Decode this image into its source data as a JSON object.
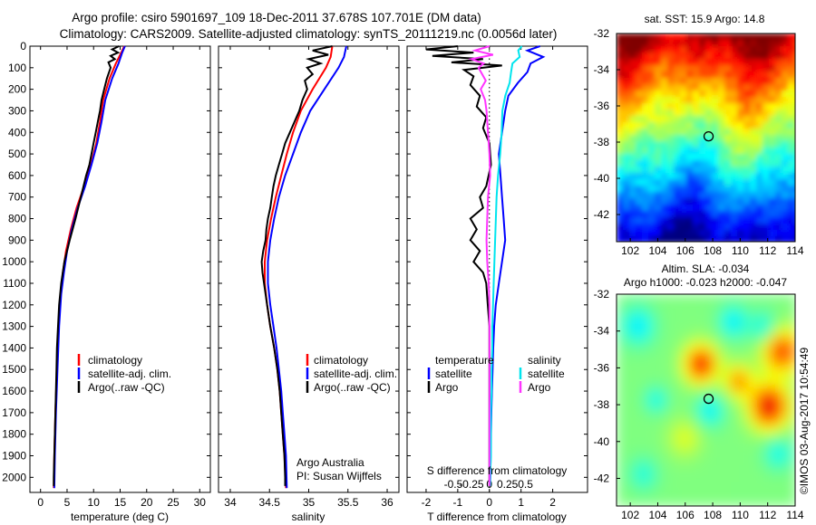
{
  "header": {
    "line1": "Argo profile: csiro 5901697_109 18-Dec-2011 37.678S 107.701E (DM data)",
    "line2": "Climatology: CARS2009. Satellite-adjusted climatology: synTS_20111219.nc (0.0056d later)"
  },
  "side_labels": {
    "sst": "sat. SST: 15.9 Argo: 14.8",
    "sla1": "Altim. SLA: -0.034",
    "sla2": "Argo h1000: -0.023 h2000: -0.047",
    "credit": "©IMOS 03-Aug-2017 10:54:49"
  },
  "colors": {
    "climatology": "#ff0000",
    "satellite": "#0000ff",
    "argo": "#000000",
    "salinity_satellite": "#00e5ee",
    "salinity_argo": "#ff33ff"
  },
  "chart_data": [
    {
      "id": "temperature",
      "type": "line",
      "xlabel": "temperature (deg C)",
      "ylabel": "",
      "xlim": [
        -2,
        32
      ],
      "ylim": [
        2070,
        0
      ],
      "xticks": [
        0,
        5,
        10,
        15,
        20,
        25,
        30
      ],
      "yticks": [
        0,
        100,
        200,
        300,
        400,
        500,
        600,
        700,
        800,
        900,
        1000,
        1100,
        1200,
        1300,
        1400,
        1500,
        1600,
        1700,
        1800,
        1900,
        2000
      ],
      "legend": [
        "climatology",
        "satellite-adj. clim.",
        "Argo(..raw -QC)"
      ],
      "legend_position": "bottom-center",
      "series": [
        {
          "name": "climatology",
          "color": "#ff0000",
          "depth": [
            0,
            30,
            80,
            150,
            250,
            350,
            450,
            550,
            650,
            750,
            850,
            950,
            1050,
            1150,
            1300,
            1500,
            1700,
            1900,
            2050
          ],
          "values": [
            15.8,
            15.2,
            14.2,
            13.0,
            11.8,
            11.2,
            10.5,
            9.5,
            8.2,
            6.8,
            5.7,
            4.8,
            4.2,
            3.8,
            3.4,
            3.1,
            2.8,
            2.6,
            2.5
          ]
        },
        {
          "name": "satellite-adj. clim.",
          "color": "#0000ff",
          "depth": [
            0,
            30,
            80,
            150,
            250,
            350,
            450,
            550,
            650,
            750,
            850,
            950,
            1050,
            1150,
            1300,
            1500,
            1700,
            1900,
            2050
          ],
          "values": [
            15.9,
            15.4,
            14.7,
            13.5,
            12.2,
            11.5,
            10.7,
            9.6,
            8.4,
            7.0,
            5.9,
            5.0,
            4.4,
            3.9,
            3.5,
            3.2,
            2.9,
            2.7,
            2.6
          ]
        },
        {
          "name": "Argo(..raw -QC)",
          "color": "#000000",
          "depth": [
            0,
            15,
            30,
            45,
            60,
            75,
            100,
            150,
            200,
            250,
            300,
            350,
            400,
            450,
            500,
            550,
            600,
            700,
            800,
            900,
            1000,
            1100,
            1200,
            1300,
            1400,
            1500,
            1600,
            1700,
            1800,
            1900,
            2000,
            2040
          ],
          "values": [
            14.8,
            13.5,
            14.6,
            13.2,
            14.0,
            12.8,
            13.2,
            12.5,
            12.0,
            11.5,
            11.2,
            10.8,
            10.4,
            10.0,
            9.6,
            9.2,
            8.6,
            7.6,
            6.6,
            5.5,
            4.5,
            3.9,
            3.5,
            3.3,
            3.1,
            3.0,
            2.9,
            2.8,
            2.7,
            2.6,
            2.5,
            2.5
          ]
        }
      ]
    },
    {
      "id": "salinity",
      "type": "line",
      "xlabel": "salinity",
      "ylabel": "",
      "xlim": [
        33.85,
        36.15
      ],
      "ylim": [
        2070,
        0
      ],
      "xticks": [
        34,
        34.5,
        35,
        35.5,
        36
      ],
      "legend": [
        "climatology",
        "satellite-adj. clim.",
        "Argo(..raw -QC)"
      ],
      "legend_position": "bottom-center",
      "annotation": [
        "Argo Australia",
        "PI: Susan Wijffels"
      ],
      "series": [
        {
          "name": "climatology",
          "color": "#ff0000",
          "depth": [
            0,
            50,
            100,
            200,
            300,
            400,
            500,
            600,
            700,
            800,
            900,
            1000,
            1100,
            1200,
            1300,
            1400,
            1500,
            1600,
            1700,
            1800,
            1900,
            2050
          ],
          "values": [
            35.3,
            35.28,
            35.22,
            35.05,
            34.9,
            34.8,
            34.72,
            34.65,
            34.58,
            34.52,
            34.47,
            34.44,
            34.44,
            34.47,
            34.51,
            34.56,
            34.6,
            34.63,
            34.65,
            34.67,
            34.69,
            34.71
          ]
        },
        {
          "name": "satellite-adj. clim.",
          "color": "#0000ff",
          "depth": [
            0,
            50,
            100,
            200,
            300,
            400,
            500,
            600,
            700,
            800,
            900,
            1000,
            1100,
            1200,
            1300,
            1400,
            1500,
            1600,
            1700,
            1800,
            1900,
            2050
          ],
          "values": [
            35.48,
            35.45,
            35.38,
            35.2,
            35.02,
            34.9,
            34.8,
            34.7,
            34.62,
            34.56,
            34.51,
            34.48,
            34.48,
            34.51,
            34.55,
            34.59,
            34.62,
            34.65,
            34.67,
            34.69,
            34.71,
            34.72
          ]
        },
        {
          "name": "Argo(..raw -QC)",
          "color": "#000000",
          "depth": [
            0,
            20,
            40,
            60,
            80,
            100,
            130,
            160,
            200,
            250,
            300,
            350,
            400,
            450,
            500,
            550,
            600,
            650,
            700,
            750,
            800,
            850,
            900,
            950,
            1000,
            1050,
            1100,
            1200,
            1300,
            1400,
            1500,
            1600,
            1700,
            1800,
            1900,
            2000,
            2040
          ],
          "values": [
            35.3,
            35.05,
            35.25,
            35.0,
            35.15,
            34.98,
            35.05,
            34.95,
            34.98,
            34.92,
            34.88,
            34.82,
            34.76,
            34.7,
            34.66,
            34.62,
            34.58,
            34.55,
            34.53,
            34.51,
            34.48,
            34.46,
            34.45,
            34.42,
            34.4,
            34.41,
            34.43,
            34.47,
            34.51,
            34.56,
            34.6,
            34.63,
            34.65,
            34.67,
            34.69,
            34.7,
            34.7
          ]
        }
      ]
    },
    {
      "id": "difference",
      "type": "line",
      "xlabel": "T difference from climatology",
      "xlabel_top": "S difference from climatology",
      "ylabel": "",
      "xlim": [
        -2.6,
        3.1
      ],
      "ylim": [
        2070,
        0
      ],
      "xticks": [
        -2,
        -1,
        0,
        1,
        2
      ],
      "xticks_s": [
        -0.5,
        -0.25,
        0,
        0.25,
        0.5
      ],
      "legend_left_title": "temperature",
      "legend_right_title": "salinity",
      "legend": [
        "satellite",
        "Argo",
        "satellite",
        "Argo"
      ],
      "legend_position": "bottom-center",
      "series": [
        {
          "name": "satellite",
          "quantity": "temperature",
          "color": "#0000ff",
          "depth": [
            0,
            20,
            50,
            80,
            120,
            170,
            230,
            300,
            400,
            500,
            600,
            700,
            800,
            900,
            1000,
            1100,
            1200,
            1300,
            1400,
            1500,
            1600,
            1700,
            1800,
            1900,
            2000,
            2040
          ],
          "values": [
            1.6,
            1.2,
            1.7,
            1.3,
            1.2,
            0.9,
            0.6,
            0.5,
            0.4,
            0.3,
            0.35,
            0.4,
            0.45,
            0.5,
            0.4,
            0.3,
            0.2,
            0.15,
            0.12,
            0.1,
            0.08,
            0.06,
            0.05,
            0.04,
            0.03,
            0.02
          ]
        },
        {
          "name": "Argo",
          "quantity": "temperature",
          "color": "#000000",
          "depth": [
            0,
            15,
            30,
            45,
            60,
            75,
            90,
            110,
            140,
            180,
            230,
            280,
            330,
            380,
            450,
            550,
            650,
            700,
            750,
            800,
            850,
            900,
            950,
            1000,
            1050,
            1100,
            1200,
            1300,
            1400,
            1500,
            1600,
            1700,
            1800,
            1900,
            2000,
            2040
          ],
          "values": [
            -1.0,
            -2.0,
            -0.5,
            -1.8,
            -0.2,
            -1.2,
            0.4,
            -0.8,
            -0.5,
            -0.6,
            -0.3,
            -0.4,
            -0.1,
            -0.2,
            0.0,
            0.05,
            -0.1,
            -0.3,
            -0.2,
            -0.6,
            -0.4,
            -0.6,
            -0.3,
            -0.5,
            -0.2,
            -0.1,
            -0.05,
            0.0,
            0.0,
            0.0,
            0.0,
            0.0,
            0.0,
            0.0,
            0.0,
            0.0
          ]
        },
        {
          "name": "satellite",
          "quantity": "salinity",
          "color": "#00e5ee",
          "depth": [
            0,
            20,
            50,
            80,
            120,
            170,
            230,
            300,
            400,
            500,
            600,
            700,
            800,
            900,
            1000,
            1100,
            1200,
            1300,
            1400,
            1500,
            1600,
            1700,
            1800,
            1900,
            2000,
            2040
          ],
          "values": [
            0.45,
            0.4,
            0.42,
            0.32,
            0.3,
            0.28,
            0.22,
            0.18,
            0.17,
            0.15,
            0.12,
            0.1,
            0.09,
            0.08,
            0.07,
            0.06,
            0.05,
            0.04,
            0.04,
            0.03,
            0.03,
            0.02,
            0.02,
            0.02,
            0.01,
            0.01
          ]
        },
        {
          "name": "Argo",
          "quantity": "salinity",
          "color": "#ff33ff",
          "depth": [
            0,
            20,
            40,
            60,
            80,
            100,
            130,
            160,
            200,
            250,
            300,
            400,
            500,
            600,
            700,
            800,
            900,
            1000,
            1100,
            1200,
            1300,
            1400,
            1500,
            1600,
            1700,
            1800,
            1900,
            2000,
            2040
          ],
          "values": [
            0.0,
            -0.2,
            0.05,
            -0.25,
            -0.08,
            -0.15,
            -0.1,
            -0.05,
            -0.12,
            -0.06,
            -0.04,
            -0.02,
            0.0,
            0.01,
            -0.02,
            -0.03,
            -0.04,
            -0.03,
            -0.01,
            0.0,
            0.0,
            0.0,
            0.0,
            0.0,
            0.0,
            0.0,
            0.0,
            0.0,
            0.0
          ]
        }
      ]
    },
    {
      "id": "sst_map",
      "type": "heatmap",
      "title": "sat. SST: 15.9 Argo: 14.8",
      "xlim": [
        101,
        114
      ],
      "ylim": [
        -43.5,
        -32
      ],
      "xticks": [
        102,
        104,
        106,
        108,
        110,
        112,
        114
      ],
      "yticks": [
        -32,
        -34,
        -36,
        -38,
        -40,
        -42
      ],
      "marker": {
        "x": 107.7,
        "y": -37.68
      },
      "colormap": "jet"
    },
    {
      "id": "sla_map",
      "type": "heatmap",
      "title": "Altim. SLA: -0.034",
      "subtitle": "Argo h1000: -0.023 h2000: -0.047",
      "xlim": [
        101,
        114
      ],
      "ylim": [
        -43.5,
        -32
      ],
      "xticks": [
        102,
        104,
        106,
        108,
        110,
        112,
        114
      ],
      "yticks": [
        -32,
        -34,
        -36,
        -38,
        -40,
        -42
      ],
      "marker": {
        "x": 107.7,
        "y": -37.68
      },
      "colormap": "jet"
    }
  ]
}
